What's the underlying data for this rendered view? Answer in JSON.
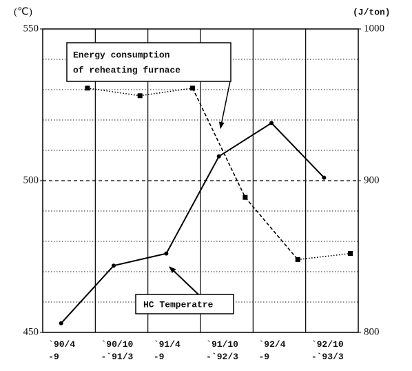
{
  "chart_data": {
    "type": "line",
    "y_unit": "(℃)",
    "y2_unit": "(J/ton)",
    "categories": [
      "`90/4 -9",
      "`90/10 -`91/3",
      "`91/4 -9",
      "`91/10 -`92/3",
      "`92/4 -9",
      "`92/10 -`93/3"
    ],
    "ylim": [
      450,
      550
    ],
    "yticks": [
      450,
      500,
      550
    ],
    "y2lim": [
      800,
      1000
    ],
    "y2ticks": [
      800,
      900,
      1000
    ],
    "minor_yticks": [
      460,
      470,
      480,
      490,
      510,
      520,
      530,
      540
    ],
    "grid": true,
    "series": [
      {
        "name": "HC Temperatre",
        "color": "#000000",
        "values": [
          453,
          472,
          476,
          508,
          519,
          501
        ]
      },
      {
        "name": "Energy consumption of reheating furnace",
        "color": "#000000",
        "axis": "y2",
        "values": [
          961,
          956,
          961,
          889,
          848,
          852
        ],
        "segment_styles": [
          "dotted",
          "dotted",
          "dashed",
          "dashed",
          "dotted"
        ]
      }
    ],
    "annotations": [
      "Energy consumption",
      "of reheating furnace",
      "HC Temperatre"
    ]
  }
}
